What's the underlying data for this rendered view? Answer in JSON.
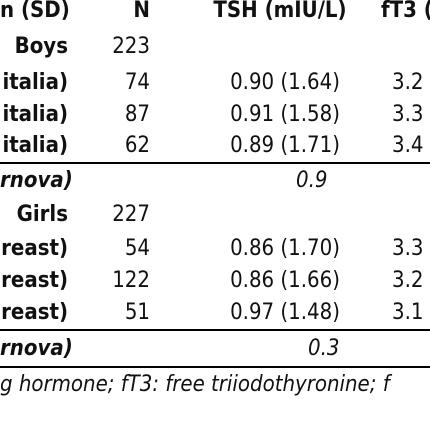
{
  "table": {
    "headers": {
      "group": "n (SD)",
      "n": "N",
      "tsh": "TSH (mIU/L)",
      "ft3": "fT3 ("
    },
    "rows": [
      {
        "group": "Boys",
        "n": "223",
        "tsh": "",
        "ft3": ""
      },
      {
        "group": "italia)",
        "n": "74",
        "tsh": "0.90 (1.64)",
        "ft3": "3.2"
      },
      {
        "group": "italia)",
        "n": "87",
        "tsh": "0.91 (1.58)",
        "ft3": "3.3"
      },
      {
        "group": "italia)",
        "n": "62",
        "tsh": "0.89 (1.71)",
        "ft3": "3.4"
      },
      {
        "group": "rnova)",
        "n": "",
        "tsh": "0.9",
        "ft3": ""
      },
      {
        "group": "Girls",
        "n": "227",
        "tsh": "",
        "ft3": ""
      },
      {
        "group": "reast)",
        "n": "54",
        "tsh": "0.86 (1.70)",
        "ft3": "3.3"
      },
      {
        "group": "reast)",
        "n": "122",
        "tsh": "0.86 (1.66)",
        "ft3": "3.2"
      },
      {
        "group": "reast)",
        "n": "51",
        "tsh": "0.97 (1.48)",
        "ft3": "3.1"
      },
      {
        "group": "rnova)",
        "n": "",
        "tsh": "0.3",
        "ft3": ""
      }
    ],
    "footnote": "g hormone; fT3: free triiodothyronine; f"
  }
}
